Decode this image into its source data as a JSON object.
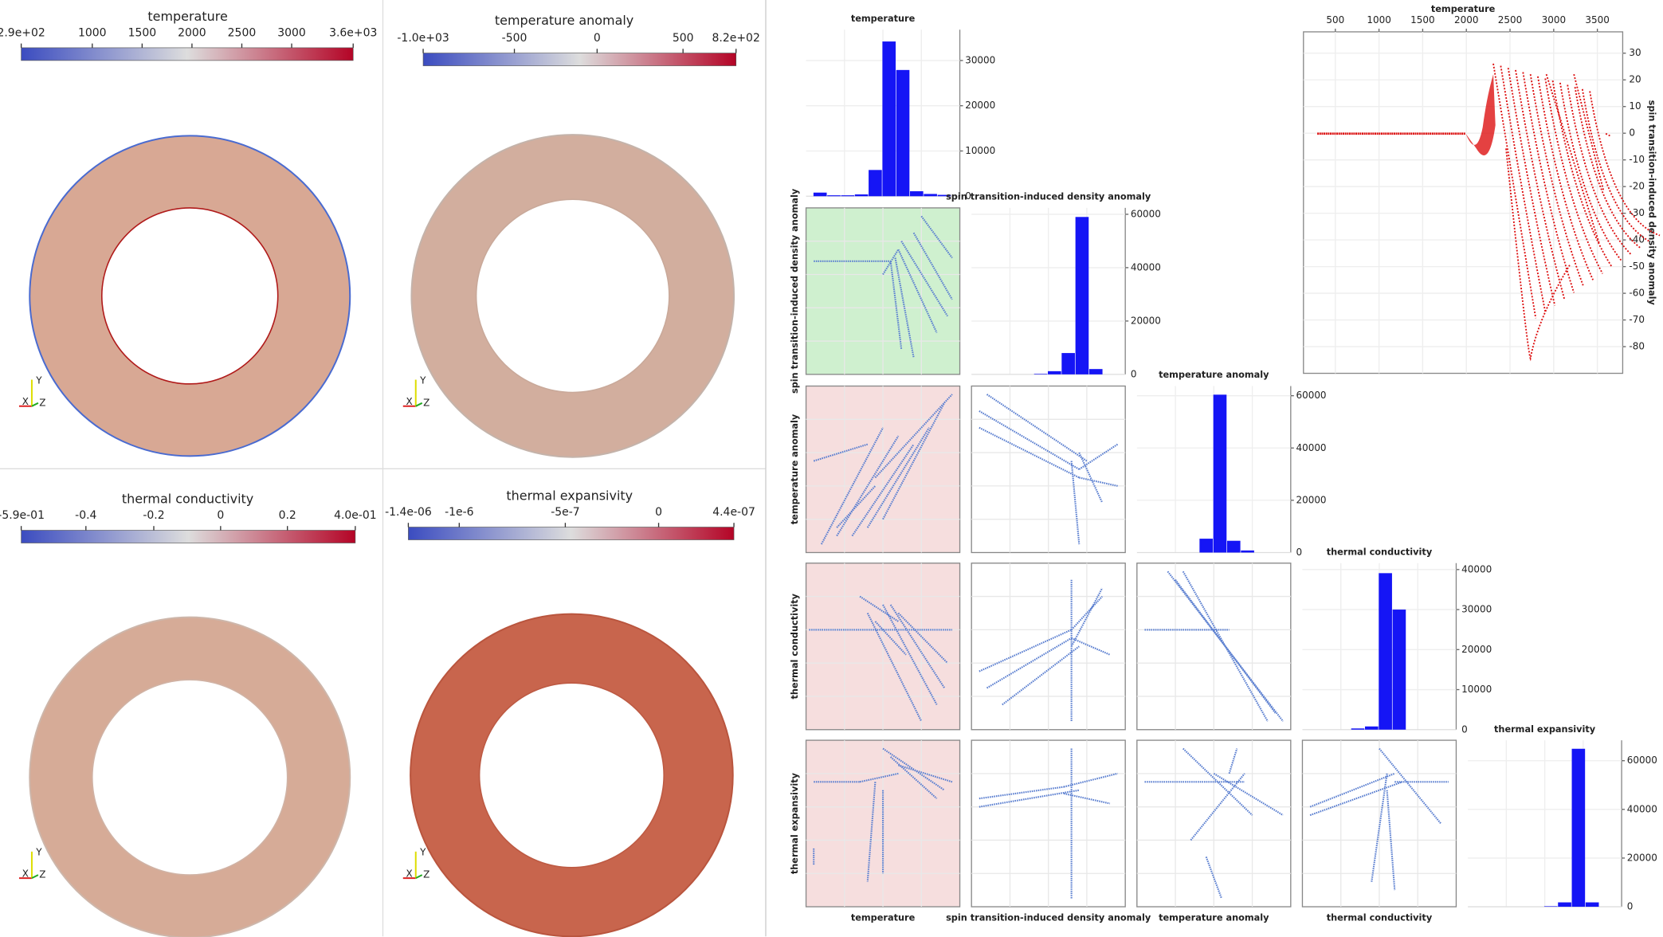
{
  "render_views": [
    {
      "colorbar": {
        "title": "temperature",
        "ticks": [
          "2.9e+02",
          "1000",
          "1500",
          "2000",
          "2500",
          "3000",
          "3.6e+03"
        ]
      }
    },
    {
      "colorbar": {
        "title": "temperature anomaly",
        "ticks": [
          "-1.0e+03",
          "-500",
          "0",
          "500",
          "8.2e+02"
        ]
      }
    },
    {
      "colorbar": {
        "title": "thermal conductivity",
        "ticks": [
          "-5.9e-01",
          "-0.4",
          "-0.2",
          "0",
          "0.2",
          "4.0e-01"
        ]
      }
    },
    {
      "colorbar": {
        "title": "thermal expansivity",
        "ticks": [
          "-1.4e-06",
          "-1e-6",
          "-5e-7",
          "0",
          "4.4e-07"
        ]
      }
    }
  ],
  "triad": [
    "X",
    "Y",
    "Z"
  ],
  "matrix": {
    "variables": [
      "temperature",
      "spin transition-induced density anomaly",
      "temperature anomaly",
      "thermal conductivity",
      "thermal expansivity"
    ],
    "histograms": [
      {
        "type": "histogram",
        "values": [
          800,
          200,
          200,
          400,
          5800,
          34200,
          27900,
          1100,
          500,
          300
        ],
        "ylim": [
          0,
          36800
        ],
        "yticks": [
          10000,
          20000,
          30000
        ]
      },
      {
        "type": "histogram",
        "values": [
          0,
          0,
          0,
          0,
          200,
          1200,
          8000,
          59000,
          2000,
          0
        ],
        "ylim": [
          0,
          62400
        ],
        "yticks": [
          20000,
          40000,
          60000
        ]
      },
      {
        "type": "histogram",
        "values": [
          0,
          0,
          0,
          0,
          5300,
          60400,
          4500,
          800,
          0,
          0
        ],
        "ylim": [
          0,
          63700
        ],
        "yticks": [
          20000,
          40000,
          60000
        ]
      },
      {
        "type": "histogram",
        "values": [
          0,
          0,
          0,
          300,
          800,
          39100,
          30000,
          0,
          0,
          0
        ],
        "ylim": [
          0,
          41600
        ],
        "yticks": [
          10000,
          20000,
          30000,
          40000
        ]
      },
      {
        "type": "histogram",
        "values": [
          0,
          0,
          0,
          0,
          0,
          200,
          1800,
          64900,
          1800,
          0
        ],
        "ylim": [
          0,
          68400
        ],
        "yticks": [
          20000,
          40000,
          60000
        ]
      }
    ]
  },
  "plot": {
    "type": "scatter",
    "title": "temperature",
    "ylabel": "spin transition-induced density anomaly",
    "color": "#dd1111",
    "grid": true,
    "xlim": [
      135,
      3790
    ],
    "ylim": [
      -90,
      38
    ],
    "xticks": [
      500,
      1000,
      1500,
      2000,
      2500,
      3000,
      3500
    ],
    "yticks": [
      30,
      20,
      10,
      0,
      -10,
      -20,
      -30,
      -40,
      -50,
      -60,
      -70,
      -80
    ]
  }
}
